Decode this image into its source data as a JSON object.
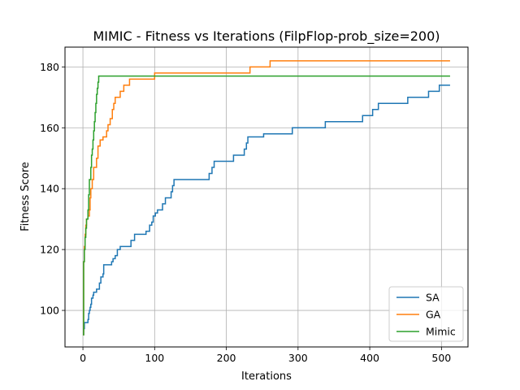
{
  "chart_data": {
    "type": "line",
    "title": "MIMIC - Fitness vs Iterations (FilpFlop-prob_size=200)",
    "xlabel": "Iterations",
    "ylabel": "Fitness Score",
    "xlim": [
      -25,
      537
    ],
    "ylim": [
      88,
      186.5
    ],
    "xticks": [
      0,
      100,
      200,
      300,
      400,
      500
    ],
    "yticks": [
      100,
      120,
      140,
      160,
      180
    ],
    "grid": true,
    "legend_position": "lower-right",
    "series": [
      {
        "name": "SA",
        "color": "#1f77b4",
        "steps": [
          [
            0,
            92
          ],
          [
            1,
            94
          ],
          [
            2,
            96
          ],
          [
            7,
            97
          ],
          [
            8,
            99
          ],
          [
            9,
            100
          ],
          [
            10,
            101
          ],
          [
            11,
            102
          ],
          [
            12,
            104
          ],
          [
            14,
            105
          ],
          [
            15,
            106
          ],
          [
            19,
            107
          ],
          [
            23,
            109
          ],
          [
            25,
            111
          ],
          [
            28,
            112
          ],
          [
            29,
            115
          ],
          [
            40,
            116
          ],
          [
            42,
            117
          ],
          [
            45,
            118
          ],
          [
            48,
            120
          ],
          [
            52,
            121
          ],
          [
            67,
            123
          ],
          [
            72,
            125
          ],
          [
            88,
            126
          ],
          [
            93,
            128
          ],
          [
            96,
            129
          ],
          [
            98,
            131
          ],
          [
            101,
            132
          ],
          [
            104,
            133
          ],
          [
            111,
            135
          ],
          [
            115,
            137
          ],
          [
            123,
            139
          ],
          [
            125,
            141
          ],
          [
            127,
            143
          ],
          [
            176,
            145
          ],
          [
            180,
            147
          ],
          [
            183,
            149
          ],
          [
            210,
            151
          ],
          [
            225,
            153
          ],
          [
            228,
            155
          ],
          [
            230,
            157
          ],
          [
            252,
            158
          ],
          [
            292,
            160
          ],
          [
            338,
            162
          ],
          [
            390,
            164
          ],
          [
            404,
            166
          ],
          [
            412,
            168
          ],
          [
            453,
            170
          ],
          [
            482,
            172
          ],
          [
            497,
            174
          ],
          [
            512,
            174
          ]
        ]
      },
      {
        "name": "GA",
        "color": "#ff7f0e",
        "steps": [
          [
            0,
            92
          ],
          [
            1,
            116
          ],
          [
            2,
            121
          ],
          [
            3,
            125
          ],
          [
            4,
            128
          ],
          [
            5,
            130
          ],
          [
            7,
            131
          ],
          [
            9,
            133
          ],
          [
            10,
            137
          ],
          [
            11,
            140
          ],
          [
            13,
            143
          ],
          [
            15,
            147
          ],
          [
            19,
            150
          ],
          [
            21,
            154
          ],
          [
            24,
            156
          ],
          [
            28,
            157
          ],
          [
            33,
            159
          ],
          [
            35,
            161
          ],
          [
            38,
            163
          ],
          [
            41,
            166
          ],
          [
            43,
            168
          ],
          [
            45,
            170
          ],
          [
            52,
            172
          ],
          [
            57,
            174
          ],
          [
            65,
            176
          ],
          [
            100,
            178
          ],
          [
            233,
            180
          ],
          [
            261,
            182
          ],
          [
            512,
            182
          ]
        ]
      },
      {
        "name": "Mimic",
        "color": "#2ca02c",
        "steps": [
          [
            0,
            92
          ],
          [
            1,
            116
          ],
          [
            2,
            120
          ],
          [
            3,
            124
          ],
          [
            4,
            127
          ],
          [
            5,
            130
          ],
          [
            7,
            133
          ],
          [
            8,
            138
          ],
          [
            9,
            143
          ],
          [
            11,
            147
          ],
          [
            12,
            151
          ],
          [
            13,
            153
          ],
          [
            14,
            156
          ],
          [
            15,
            159
          ],
          [
            16,
            162
          ],
          [
            17,
            165
          ],
          [
            18,
            168
          ],
          [
            19,
            171
          ],
          [
            20,
            173
          ],
          [
            21,
            175
          ],
          [
            22,
            177
          ],
          [
            512,
            177
          ]
        ]
      }
    ]
  }
}
